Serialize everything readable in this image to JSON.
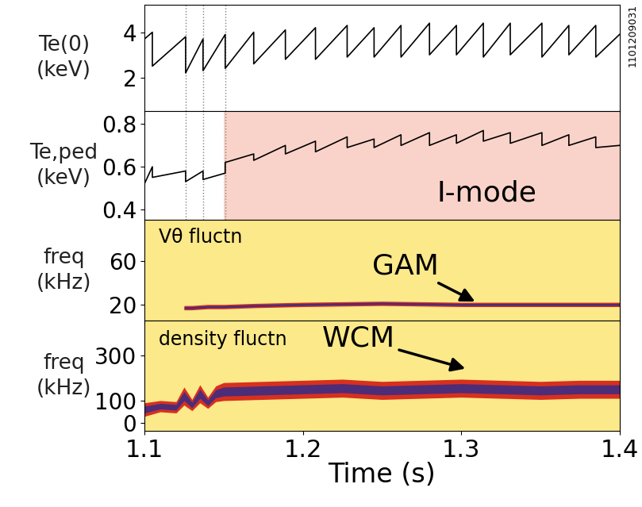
{
  "figure_note": "1101209031",
  "chart_data": [
    {
      "type": "line",
      "ylabel": "Te(0)\n(keV)",
      "xlim": [
        1.1,
        1.4
      ],
      "xticks": [
        1.1,
        1.2,
        1.3,
        1.4
      ],
      "ylim": [
        0.5,
        5.2
      ],
      "yticks": [
        2,
        4
      ],
      "tick_labels": "y",
      "vlines": [
        1.126,
        1.137,
        1.151
      ],
      "series": [
        {
          "name": "Te(0)",
          "color": "#000000",
          "x": [
            1.1,
            1.105,
            1.105,
            1.126,
            1.126,
            1.137,
            1.137,
            1.151,
            1.151,
            1.169,
            1.169,
            1.189,
            1.189,
            1.208,
            1.208,
            1.228,
            1.228,
            1.245,
            1.245,
            1.262,
            1.262,
            1.28,
            1.28,
            1.297,
            1.297,
            1.314,
            1.314,
            1.331,
            1.331,
            1.351,
            1.351,
            1.368,
            1.368,
            1.385,
            1.385,
            1.4
          ],
          "values": [
            3.7,
            4.0,
            2.5,
            3.8,
            2.2,
            3.7,
            2.3,
            3.9,
            2.4,
            4.0,
            2.6,
            4.1,
            2.8,
            4.2,
            2.8,
            4.3,
            2.9,
            4.2,
            2.9,
            4.3,
            2.9,
            4.4,
            3.0,
            4.3,
            3.0,
            4.4,
            2.9,
            4.4,
            3.0,
            4.4,
            2.9,
            4.3,
            3.0,
            4.3,
            2.9,
            3.9
          ]
        }
      ]
    },
    {
      "type": "line",
      "ylabel": "Te,ped\n(keV)",
      "xlim": [
        1.1,
        1.4
      ],
      "xticks": [
        1.1,
        1.2,
        1.3,
        1.4
      ],
      "ylim": [
        0.35,
        0.86
      ],
      "yticks": [
        0.4,
        0.6,
        0.8
      ],
      "tick_labels": "y",
      "vlines": [
        1.126,
        1.137,
        1.151
      ],
      "span": {
        "range": [
          1.15,
          1.4
        ],
        "color": "#f9d3c9",
        "label": "I-mode"
      },
      "series": [
        {
          "name": "Te,ped",
          "color": "#000000",
          "x": [
            1.1,
            1.105,
            1.105,
            1.126,
            1.126,
            1.137,
            1.137,
            1.151,
            1.151,
            1.169,
            1.169,
            1.189,
            1.189,
            1.208,
            1.208,
            1.228,
            1.228,
            1.245,
            1.245,
            1.262,
            1.262,
            1.28,
            1.28,
            1.297,
            1.297,
            1.314,
            1.314,
            1.331,
            1.331,
            1.351,
            1.351,
            1.368,
            1.368,
            1.385,
            1.385,
            1.4
          ],
          "values": [
            0.52,
            0.6,
            0.55,
            0.58,
            0.53,
            0.58,
            0.54,
            0.57,
            0.62,
            0.66,
            0.63,
            0.7,
            0.66,
            0.72,
            0.67,
            0.74,
            0.69,
            0.73,
            0.69,
            0.75,
            0.7,
            0.76,
            0.7,
            0.75,
            0.71,
            0.77,
            0.72,
            0.76,
            0.71,
            0.76,
            0.7,
            0.75,
            0.7,
            0.74,
            0.69,
            0.7
          ]
        }
      ]
    },
    {
      "type": "band",
      "ylabel": "freq\n(kHz)",
      "title": "Vθ fluctn",
      "annotation": "GAM",
      "color": "#fbe98a",
      "xlim": [
        1.1,
        1.4
      ],
      "xticks": [
        1.1,
        1.2,
        1.3,
        1.4
      ],
      "ylim": [
        5,
        98
      ],
      "yticks": [
        20,
        60
      ],
      "tick_labels": "y",
      "series": [
        {
          "name": "GAM",
          "color": "#d7301f",
          "x": [
            1.125,
            1.13,
            1.14,
            1.15,
            1.17,
            1.2,
            1.25,
            1.3,
            1.35,
            1.4
          ],
          "values": [
            17,
            17,
            18,
            18,
            19,
            20,
            21,
            20,
            20,
            20
          ],
          "half_width": [
            2,
            2,
            2,
            2,
            2,
            2,
            2,
            2,
            2,
            2
          ]
        }
      ]
    },
    {
      "type": "band",
      "ylabel": "freq\n(kHz)",
      "title": "density fluctn",
      "annotation": "WCM",
      "color": "#fbe98a",
      "xlabel": "Time (s)",
      "xlim": [
        1.1,
        1.4
      ],
      "xticks": [
        1.1,
        1.2,
        1.3,
        1.4
      ],
      "ylim": [
        -35,
        455
      ],
      "yticks": [
        0,
        100,
        300
      ],
      "series": [
        {
          "name": "WCM",
          "color": "#d7301f",
          "x": [
            1.1,
            1.11,
            1.12,
            1.125,
            1.13,
            1.135,
            1.14,
            1.145,
            1.15,
            1.175,
            1.2,
            1.225,
            1.25,
            1.275,
            1.3,
            1.325,
            1.35,
            1.375,
            1.4
          ],
          "values": [
            60,
            75,
            70,
            120,
            80,
            130,
            90,
            130,
            140,
            145,
            150,
            155,
            145,
            150,
            155,
            150,
            145,
            150,
            150
          ],
          "half_width": [
            30,
            25,
            25,
            40,
            25,
            40,
            25,
            35,
            40,
            40,
            40,
            40,
            40,
            40,
            40,
            40,
            40,
            40,
            40
          ]
        }
      ]
    }
  ]
}
